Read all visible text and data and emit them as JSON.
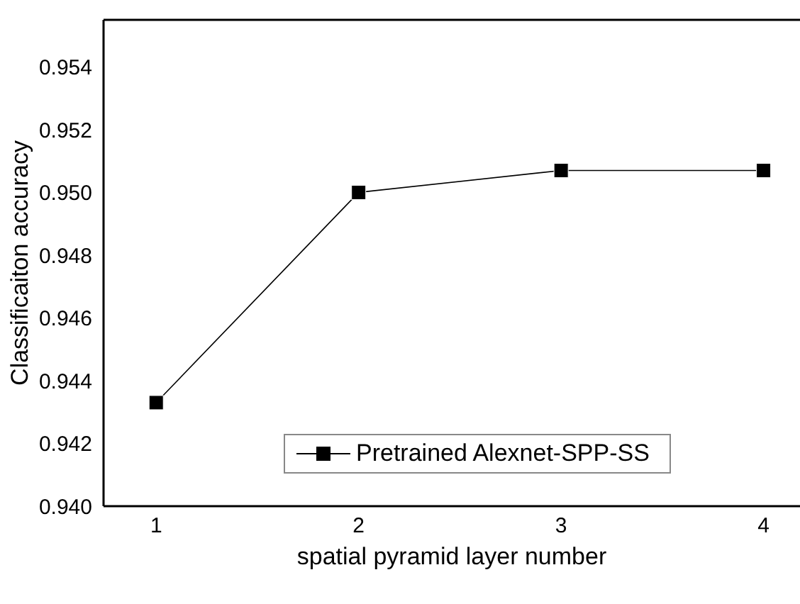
{
  "chart_data": {
    "type": "line",
    "xlabel": "spatial pyramid layer number",
    "ylabel": "Classificaiton accuracy",
    "x": [
      1,
      2,
      3,
      4
    ],
    "series": [
      {
        "name": "Pretrained Alexnet-SPP-SS",
        "color": "#000000",
        "values": [
          0.9433,
          0.95,
          0.9507,
          0.9507
        ]
      }
    ],
    "xlim": [
      0.74,
      4.18
    ],
    "xticks": [
      1,
      2,
      3,
      4
    ],
    "ylim": [
      0.94,
      0.9555
    ],
    "yticks": [
      {
        "value": 0.94,
        "label": "0.940"
      },
      {
        "value": 0.942,
        "label": "0.942"
      },
      {
        "value": 0.944,
        "label": "0.944"
      },
      {
        "value": 0.946,
        "label": "0.946"
      },
      {
        "value": 0.948,
        "label": "0.948"
      },
      {
        "value": 0.95,
        "label": "0.950"
      },
      {
        "value": 0.952,
        "label": "0.952"
      },
      {
        "value": 0.954,
        "label": "0.954"
      }
    ],
    "marker": "square",
    "line_style": "solid",
    "grid": false,
    "legend": "bottom"
  }
}
